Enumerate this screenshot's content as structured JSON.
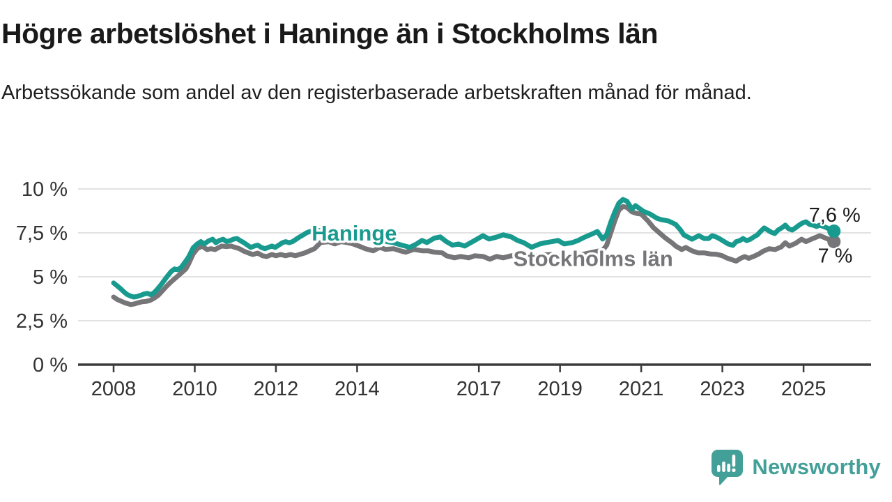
{
  "title": "Högre arbetslöshet i Haninge än i Stockholms län",
  "subtitle": "Arbetssökande som andel av den registerbaserade arbetskraften månad för månad.",
  "logo": {
    "text": "Newsworthy",
    "color": "#43a098"
  },
  "chart_data": {
    "type": "line",
    "title": "Högre arbetslöshet i Haninge än i Stockholms län",
    "xlabel": "",
    "ylabel": "",
    "xlim": [
      2007.1,
      2026.6
    ],
    "ylim": [
      0,
      10.5
    ],
    "grid": "horizontal",
    "grid_color": "#d9d9d9",
    "axis_color": "#3b3b3b",
    "x_ticks": [
      {
        "year": 2008,
        "label": "2008"
      },
      {
        "year": 2010,
        "label": "2010"
      },
      {
        "year": 2012,
        "label": "2012"
      },
      {
        "year": 2014,
        "label": "2014"
      },
      {
        "year": 2017,
        "label": "2017"
      },
      {
        "year": 2019,
        "label": "2019"
      },
      {
        "year": 2021,
        "label": "2021"
      },
      {
        "year": 2023,
        "label": "2023"
      },
      {
        "year": 2025,
        "label": "2025"
      }
    ],
    "y_ticks": [
      {
        "value": 0,
        "label": "0 %"
      },
      {
        "value": 2.5,
        "label": "2,5 %"
      },
      {
        "value": 5,
        "label": "5 %"
      },
      {
        "value": 7.5,
        "label": "7,5 %"
      },
      {
        "value": 10,
        "label": "10 %"
      }
    ],
    "series": [
      {
        "name": "Stockholms län",
        "color": "#767679",
        "end_label": "7 %",
        "end_label_pos": [
          2025.35,
          5.82
        ],
        "label_pos": [
          2017.85,
          5.62
        ],
        "points": [
          [
            2008.0,
            3.85
          ],
          [
            2008.1,
            3.7
          ],
          [
            2008.2,
            3.6
          ],
          [
            2008.3,
            3.5
          ],
          [
            2008.42,
            3.42
          ],
          [
            2008.5,
            3.45
          ],
          [
            2008.6,
            3.52
          ],
          [
            2008.7,
            3.58
          ],
          [
            2008.8,
            3.6
          ],
          [
            2008.9,
            3.66
          ],
          [
            2009.0,
            3.78
          ],
          [
            2009.1,
            3.95
          ],
          [
            2009.2,
            4.2
          ],
          [
            2009.3,
            4.45
          ],
          [
            2009.4,
            4.68
          ],
          [
            2009.5,
            4.88
          ],
          [
            2009.6,
            5.08
          ],
          [
            2009.7,
            5.28
          ],
          [
            2009.78,
            5.45
          ],
          [
            2009.84,
            5.7
          ],
          [
            2009.96,
            6.3
          ],
          [
            2010.06,
            6.6
          ],
          [
            2010.18,
            6.75
          ],
          [
            2010.3,
            6.55
          ],
          [
            2010.4,
            6.6
          ],
          [
            2010.5,
            6.55
          ],
          [
            2010.66,
            6.75
          ],
          [
            2010.78,
            6.72
          ],
          [
            2010.9,
            6.75
          ],
          [
            2011.0,
            6.67
          ],
          [
            2011.1,
            6.6
          ],
          [
            2011.2,
            6.47
          ],
          [
            2011.33,
            6.35
          ],
          [
            2011.43,
            6.27
          ],
          [
            2011.55,
            6.35
          ],
          [
            2011.67,
            6.2
          ],
          [
            2011.77,
            6.15
          ],
          [
            2011.9,
            6.27
          ],
          [
            2012.0,
            6.2
          ],
          [
            2012.12,
            6.27
          ],
          [
            2012.24,
            6.2
          ],
          [
            2012.36,
            6.27
          ],
          [
            2012.48,
            6.2
          ],
          [
            2012.58,
            6.27
          ],
          [
            2012.7,
            6.35
          ],
          [
            2012.82,
            6.47
          ],
          [
            2012.95,
            6.6
          ],
          [
            2013.1,
            6.95
          ],
          [
            2013.3,
            7.0
          ],
          [
            2013.45,
            6.87
          ],
          [
            2013.6,
            7.0
          ],
          [
            2013.75,
            6.95
          ],
          [
            2013.9,
            6.87
          ],
          [
            2014.1,
            6.7
          ],
          [
            2014.2,
            6.6
          ],
          [
            2014.4,
            6.48
          ],
          [
            2014.56,
            6.68
          ],
          [
            2014.7,
            6.56
          ],
          [
            2014.9,
            6.6
          ],
          [
            2015.06,
            6.48
          ],
          [
            2015.2,
            6.4
          ],
          [
            2015.4,
            6.56
          ],
          [
            2015.6,
            6.48
          ],
          [
            2015.75,
            6.48
          ],
          [
            2015.9,
            6.4
          ],
          [
            2016.1,
            6.36
          ],
          [
            2016.2,
            6.2
          ],
          [
            2016.4,
            6.08
          ],
          [
            2016.55,
            6.16
          ],
          [
            2016.75,
            6.08
          ],
          [
            2016.9,
            6.2
          ],
          [
            2017.1,
            6.16
          ],
          [
            2017.27,
            6.0
          ],
          [
            2017.44,
            6.16
          ],
          [
            2017.6,
            6.08
          ],
          [
            2017.8,
            6.2
          ],
          [
            2018.0,
            6.18
          ],
          [
            2018.2,
            6.12
          ],
          [
            2018.4,
            6.2
          ],
          [
            2018.6,
            6.25
          ],
          [
            2018.77,
            6.27
          ],
          [
            2018.9,
            6.2
          ],
          [
            2019.1,
            6.15
          ],
          [
            2019.3,
            6.2
          ],
          [
            2019.5,
            6.25
          ],
          [
            2019.7,
            6.35
          ],
          [
            2019.9,
            6.45
          ],
          [
            2020.05,
            6.5
          ],
          [
            2020.15,
            6.8
          ],
          [
            2020.25,
            7.5
          ],
          [
            2020.35,
            8.2
          ],
          [
            2020.45,
            8.8
          ],
          [
            2020.55,
            9.0
          ],
          [
            2020.65,
            8.95
          ],
          [
            2020.77,
            8.7
          ],
          [
            2020.9,
            8.6
          ],
          [
            2021.0,
            8.57
          ],
          [
            2021.17,
            8.17
          ],
          [
            2021.3,
            7.8
          ],
          [
            2021.45,
            7.5
          ],
          [
            2021.6,
            7.2
          ],
          [
            2021.75,
            6.95
          ],
          [
            2021.85,
            6.75
          ],
          [
            2022.0,
            6.55
          ],
          [
            2022.1,
            6.67
          ],
          [
            2022.25,
            6.48
          ],
          [
            2022.4,
            6.36
          ],
          [
            2022.55,
            6.36
          ],
          [
            2022.7,
            6.3
          ],
          [
            2022.85,
            6.28
          ],
          [
            2023.0,
            6.2
          ],
          [
            2023.1,
            6.08
          ],
          [
            2023.2,
            6.0
          ],
          [
            2023.34,
            5.89
          ],
          [
            2023.45,
            6.05
          ],
          [
            2023.55,
            6.15
          ],
          [
            2023.65,
            6.05
          ],
          [
            2023.77,
            6.16
          ],
          [
            2023.9,
            6.3
          ],
          [
            2024.0,
            6.45
          ],
          [
            2024.15,
            6.6
          ],
          [
            2024.3,
            6.55
          ],
          [
            2024.45,
            6.7
          ],
          [
            2024.55,
            6.94
          ],
          [
            2024.65,
            6.75
          ],
          [
            2024.8,
            6.9
          ],
          [
            2024.95,
            7.14
          ],
          [
            2025.06,
            7.0
          ],
          [
            2025.23,
            7.18
          ],
          [
            2025.4,
            7.34
          ],
          [
            2025.55,
            7.2
          ],
          [
            2025.65,
            7.1
          ],
          [
            2025.75,
            7.0
          ]
        ]
      },
      {
        "name": "Haninge",
        "color": "#189a8e",
        "end_label": "7,6 %",
        "end_label_pos": [
          2025.13,
          8.14
        ],
        "label_pos": [
          2012.88,
          7.07
        ],
        "points": [
          [
            2008.0,
            4.65
          ],
          [
            2008.08,
            4.5
          ],
          [
            2008.17,
            4.33
          ],
          [
            2008.25,
            4.15
          ],
          [
            2008.33,
            4.0
          ],
          [
            2008.42,
            3.9
          ],
          [
            2008.5,
            3.85
          ],
          [
            2008.58,
            3.88
          ],
          [
            2008.67,
            3.95
          ],
          [
            2008.75,
            4.02
          ],
          [
            2008.83,
            4.06
          ],
          [
            2008.92,
            3.98
          ],
          [
            2009.0,
            4.1
          ],
          [
            2009.08,
            4.3
          ],
          [
            2009.17,
            4.55
          ],
          [
            2009.25,
            4.8
          ],
          [
            2009.33,
            5.05
          ],
          [
            2009.42,
            5.3
          ],
          [
            2009.5,
            5.45
          ],
          [
            2009.58,
            5.4
          ],
          [
            2009.67,
            5.55
          ],
          [
            2009.75,
            5.8
          ],
          [
            2009.84,
            6.1
          ],
          [
            2009.96,
            6.65
          ],
          [
            2010.06,
            6.87
          ],
          [
            2010.15,
            7.0
          ],
          [
            2010.23,
            6.87
          ],
          [
            2010.35,
            7.06
          ],
          [
            2010.44,
            7.14
          ],
          [
            2010.52,
            6.94
          ],
          [
            2010.6,
            7.06
          ],
          [
            2010.7,
            7.14
          ],
          [
            2010.78,
            7.0
          ],
          [
            2010.87,
            7.06
          ],
          [
            2010.95,
            7.14
          ],
          [
            2011.04,
            7.18
          ],
          [
            2011.12,
            7.06
          ],
          [
            2011.21,
            6.94
          ],
          [
            2011.3,
            6.8
          ],
          [
            2011.38,
            6.67
          ],
          [
            2011.47,
            6.75
          ],
          [
            2011.55,
            6.8
          ],
          [
            2011.64,
            6.67
          ],
          [
            2011.73,
            6.6
          ],
          [
            2011.81,
            6.67
          ],
          [
            2011.9,
            6.75
          ],
          [
            2011.98,
            6.67
          ],
          [
            2012.07,
            6.8
          ],
          [
            2012.16,
            6.94
          ],
          [
            2012.24,
            7.0
          ],
          [
            2012.33,
            6.94
          ],
          [
            2012.41,
            7.0
          ],
          [
            2012.5,
            7.14
          ],
          [
            2012.58,
            7.26
          ],
          [
            2012.67,
            7.38
          ],
          [
            2012.75,
            7.5
          ],
          [
            2012.84,
            7.58
          ],
          [
            2013.0,
            7.65
          ],
          [
            2013.2,
            7.6
          ],
          [
            2013.4,
            7.55
          ],
          [
            2013.6,
            7.48
          ],
          [
            2013.8,
            7.4
          ],
          [
            2014.0,
            7.3
          ],
          [
            2014.2,
            7.2
          ],
          [
            2014.4,
            7.1
          ],
          [
            2014.6,
            7.05
          ],
          [
            2014.88,
            6.95
          ],
          [
            2015.1,
            6.8
          ],
          [
            2015.3,
            6.68
          ],
          [
            2015.45,
            6.85
          ],
          [
            2015.6,
            7.07
          ],
          [
            2015.72,
            6.95
          ],
          [
            2015.9,
            7.2
          ],
          [
            2016.05,
            7.27
          ],
          [
            2016.2,
            7.0
          ],
          [
            2016.35,
            6.8
          ],
          [
            2016.5,
            6.87
          ],
          [
            2016.65,
            6.75
          ],
          [
            2016.9,
            7.07
          ],
          [
            2017.1,
            7.34
          ],
          [
            2017.25,
            7.15
          ],
          [
            2017.45,
            7.27
          ],
          [
            2017.6,
            7.39
          ],
          [
            2017.8,
            7.27
          ],
          [
            2017.95,
            7.07
          ],
          [
            2018.1,
            6.95
          ],
          [
            2018.3,
            6.68
          ],
          [
            2018.5,
            6.87
          ],
          [
            2018.65,
            6.95
          ],
          [
            2018.8,
            7.0
          ],
          [
            2018.95,
            7.07
          ],
          [
            2019.1,
            6.87
          ],
          [
            2019.3,
            6.95
          ],
          [
            2019.45,
            7.07
          ],
          [
            2019.6,
            7.25
          ],
          [
            2019.8,
            7.45
          ],
          [
            2019.92,
            7.58
          ],
          [
            2020.05,
            7.15
          ],
          [
            2020.15,
            7.4
          ],
          [
            2020.25,
            8.1
          ],
          [
            2020.35,
            8.7
          ],
          [
            2020.45,
            9.2
          ],
          [
            2020.55,
            9.4
          ],
          [
            2020.65,
            9.3
          ],
          [
            2020.77,
            8.85
          ],
          [
            2020.86,
            9.05
          ],
          [
            2021.05,
            8.73
          ],
          [
            2021.22,
            8.57
          ],
          [
            2021.39,
            8.33
          ],
          [
            2021.5,
            8.25
          ],
          [
            2021.68,
            8.17
          ],
          [
            2021.85,
            7.98
          ],
          [
            2021.97,
            7.66
          ],
          [
            2022.05,
            7.38
          ],
          [
            2022.15,
            7.26
          ],
          [
            2022.25,
            7.14
          ],
          [
            2022.42,
            7.34
          ],
          [
            2022.55,
            7.18
          ],
          [
            2022.66,
            7.18
          ],
          [
            2022.75,
            7.34
          ],
          [
            2022.85,
            7.26
          ],
          [
            2022.95,
            7.14
          ],
          [
            2023.05,
            7.0
          ],
          [
            2023.14,
            6.87
          ],
          [
            2023.26,
            6.79
          ],
          [
            2023.34,
            7.0
          ],
          [
            2023.43,
            7.06
          ],
          [
            2023.51,
            7.18
          ],
          [
            2023.6,
            7.06
          ],
          [
            2023.69,
            7.14
          ],
          [
            2023.77,
            7.26
          ],
          [
            2023.86,
            7.38
          ],
          [
            2023.94,
            7.58
          ],
          [
            2024.03,
            7.78
          ],
          [
            2024.12,
            7.66
          ],
          [
            2024.2,
            7.54
          ],
          [
            2024.29,
            7.46
          ],
          [
            2024.37,
            7.66
          ],
          [
            2024.46,
            7.78
          ],
          [
            2024.55,
            7.94
          ],
          [
            2024.63,
            7.74
          ],
          [
            2024.72,
            7.66
          ],
          [
            2024.8,
            7.78
          ],
          [
            2024.89,
            7.94
          ],
          [
            2024.97,
            8.06
          ],
          [
            2025.06,
            8.13
          ],
          [
            2025.15,
            7.98
          ],
          [
            2025.23,
            7.94
          ],
          [
            2025.32,
            7.86
          ],
          [
            2025.4,
            7.94
          ],
          [
            2025.49,
            7.86
          ],
          [
            2025.58,
            7.78
          ],
          [
            2025.66,
            7.66
          ],
          [
            2025.75,
            7.6
          ]
        ]
      }
    ]
  }
}
